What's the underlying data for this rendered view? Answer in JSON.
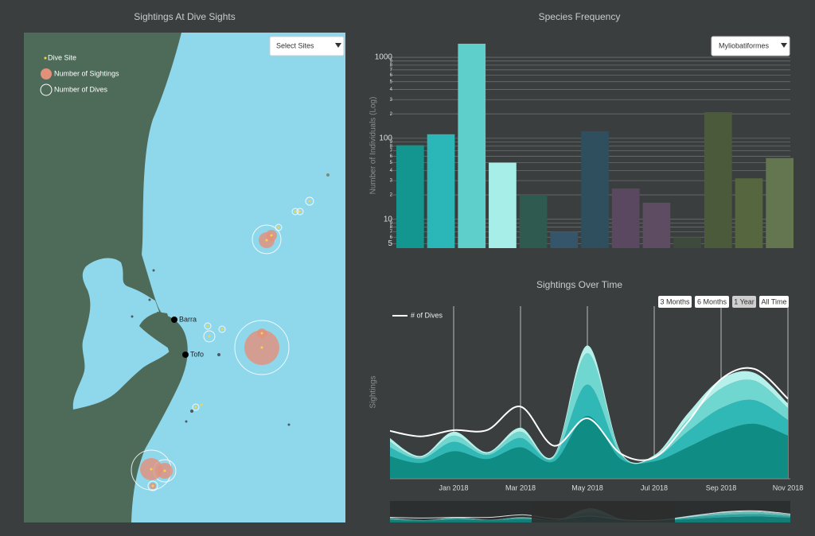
{
  "map_panel": {
    "title": "Sightings At Dive Sights",
    "select": "Select Sites",
    "legend": [
      "Dive Site",
      "Number of Sightings",
      "Number of Dives"
    ],
    "places": [
      "Barra",
      "Tofo"
    ]
  },
  "chart_data": [
    {
      "type": "bar",
      "title": "Species Frequency",
      "dropdown": "Myliobatiformes",
      "ylabel": "Number of Individuals (Log)",
      "yscale": "log",
      "grid": true,
      "ylim": [
        4.4,
        1470
      ],
      "yticks": [
        5,
        6,
        7,
        8,
        9,
        10,
        {
          "value": 20,
          "label": "2"
        },
        {
          "value": 30,
          "label": "3"
        },
        {
          "value": 40,
          "label": "4"
        },
        {
          "value": 50,
          "label": "5"
        },
        {
          "value": 60,
          "label": "6"
        },
        {
          "value": 70,
          "label": "7"
        },
        {
          "value": 80,
          "label": "8"
        },
        {
          "value": 90,
          "label": "9"
        },
        100,
        {
          "value": 200,
          "label": "2"
        },
        {
          "value": 300,
          "label": "3"
        },
        {
          "value": 400,
          "label": "4"
        },
        {
          "value": 500,
          "label": "5"
        },
        {
          "value": 600,
          "label": "6"
        },
        {
          "value": 700,
          "label": "7"
        },
        {
          "value": 800,
          "label": "8"
        },
        {
          "value": 900,
          "label": "9"
        },
        1000
      ],
      "values": [
        82,
        112,
        1470,
        50,
        20,
        7,
        122,
        24,
        16,
        6,
        210,
        32,
        57
      ],
      "colors": [
        "#13968f",
        "#2bb7b8",
        "#5ecfcb",
        "#a7eee9",
        "#2f5a50",
        "#35566a",
        "#2f4f5e",
        "#5a4760",
        "#5e4c62",
        "#3e4b3c",
        "#4b5a3b",
        "#56663f",
        "#637650"
      ]
    },
    {
      "type": "stacked-area",
      "title": "Sightings Over Time",
      "ylabel": "Sightings",
      "range_buttons": [
        "3 Months",
        "6 Months",
        "1 Year",
        "All Time"
      ],
      "x": [
        "2017-11",
        "2017-12",
        "2018-01",
        "2018-02",
        "2018-03",
        "2018-04",
        "2018-05",
        "2018-06",
        "2018-07",
        "2018-08",
        "2018-09",
        "2018-10",
        "2018-11"
      ],
      "xlim": [
        "2017-11",
        "2018-11"
      ],
      "xticks": [
        {
          "value": "2018-01",
          "label": "Jan 2018"
        },
        {
          "value": "2018-03",
          "label": "Mar 2018"
        },
        {
          "value": "2018-05",
          "label": "May 2018"
        },
        {
          "value": "2018-07",
          "label": "Jul 2018"
        },
        {
          "value": "2018-09",
          "label": "Sep 2018"
        },
        {
          "value": "2018-11",
          "label": "Nov 2018"
        }
      ],
      "ylim": [
        0,
        220
      ],
      "series": [
        {
          "color": "#0f8c84",
          "values": [
            30,
            20,
            35,
            25,
            40,
            22,
            80,
            25,
            22,
            40,
            60,
            70,
            55
          ]
        },
        {
          "color": "#2fb8b5",
          "values": [
            12,
            5,
            12,
            5,
            12,
            4,
            40,
            5,
            4,
            20,
            30,
            30,
            20
          ]
        },
        {
          "color": "#6fd6d0",
          "values": [
            8,
            2,
            8,
            2,
            8,
            2,
            40,
            2,
            2,
            15,
            25,
            25,
            15
          ]
        },
        {
          "color": "#b5f0ea",
          "values": [
            5,
            2,
            5,
            2,
            5,
            2,
            10,
            2,
            2,
            8,
            12,
            10,
            6
          ]
        },
        {
          "name": "# of Dives",
          "color": "#ffffff",
          "kind": "line",
          "values": [
            62,
            54,
            62,
            62,
            92,
            42,
            77,
            32,
            27,
            72,
            127,
            140,
            102
          ]
        }
      ]
    }
  ]
}
